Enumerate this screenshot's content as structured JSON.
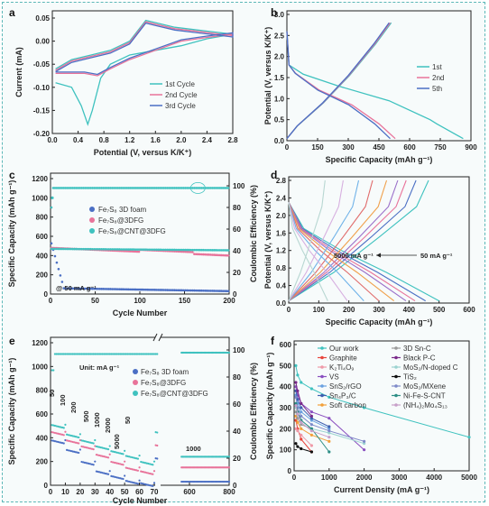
{
  "colors": {
    "teal": "#3fc2bf",
    "pink": "#e8739a",
    "blue": "#4b6fc4",
    "frame": "#5bb7b7"
  },
  "chart_data": [
    {
      "panel": "a",
      "type": "line",
      "xlabel": "Potential (V, versus K/K⁺)",
      "ylabel": "Current (mA)",
      "xlim": [
        0.0,
        2.8
      ],
      "ylim": [
        -0.2,
        0.05
      ],
      "xticks": [
        "0.0",
        "0.4",
        "0.8",
        "1.2",
        "1.6",
        "2.0",
        "2.4",
        "2.8"
      ],
      "yticks": [
        "0.05",
        "0.00",
        "-0.05",
        "-0.10",
        "-0.15",
        "-0.20"
      ],
      "legend": "bottom-right",
      "series": [
        {
          "name": "1st Cycle",
          "color": "#3fc2bf"
        },
        {
          "name": "2nd Cycle",
          "color": "#e8739a"
        },
        {
          "name": "3rd  Cycle",
          "color": "#4b6fc4"
        }
      ]
    },
    {
      "panel": "b",
      "type": "line",
      "xlabel": "Specific Capacity (mAh g⁻¹)",
      "ylabel": "Potential (V, versus K/K⁺)",
      "xlim": [
        0,
        900
      ],
      "ylim": [
        0.0,
        3.0
      ],
      "xticks": [
        "0",
        "150",
        "300",
        "450",
        "600",
        "750",
        "900"
      ],
      "yticks": [
        "0.0",
        "0.5",
        "1.0",
        "1.5",
        "2.0",
        "2.5",
        "3.0"
      ],
      "legend": "right",
      "series": [
        {
          "name": "1st",
          "color": "#3fc2bf",
          "discharge_end": 862,
          "charge_end": 510
        },
        {
          "name": "2nd",
          "color": "#e8739a",
          "discharge_end": 530,
          "charge_end": 505
        },
        {
          "name": "5th",
          "color": "#4b6fc4",
          "discharge_end": 505,
          "charge_end": 500
        }
      ]
    },
    {
      "panel": "c",
      "type": "scatter",
      "xlabel": "Cycle Number",
      "ylabel": "Specific Capacity (mAh g⁻¹)",
      "y2label": "Coulombic Efficiency (%)",
      "xlim": [
        0,
        200
      ],
      "ylim": [
        0,
        1200
      ],
      "y2lim": [
        0,
        100
      ],
      "xticks": [
        "0",
        "50",
        "100",
        "150",
        "200"
      ],
      "yticks": [
        "0",
        "200",
        "400",
        "600",
        "800",
        "1000",
        "1200"
      ],
      "y2ticks": [
        "0",
        "20",
        "40",
        "60",
        "80",
        "100"
      ],
      "annotation": "@ 50 mA g⁻¹",
      "series": [
        {
          "name": "Fe₇S₈ 3D foam",
          "color": "#4b6fc4",
          "values_start": 560,
          "values_end": 30
        },
        {
          "name": "Fe₇S₈@3DFG",
          "color": "#e8739a",
          "values_start": 480,
          "values_end": 400
        },
        {
          "name": "Fe₇S₈@CNT@3DFG",
          "color": "#3fc2bf",
          "values_start": 470,
          "values_end": 455
        },
        {
          "name": "Coulombic Efficiency",
          "color": "#3fc2bf",
          "values": 98
        }
      ]
    },
    {
      "panel": "d",
      "type": "line",
      "xlabel": "Specific Capacity (mAh g⁻¹)",
      "ylabel": "Potential (V, versus K/K⁺)",
      "xlim": [
        0,
        600
      ],
      "ylim": [
        0.0,
        2.8
      ],
      "xticks": [
        "0",
        "100",
        "200",
        "300",
        "400",
        "500",
        "600"
      ],
      "yticks": [
        "0.0",
        "0.4",
        "0.8",
        "1.2",
        "1.6",
        "2.0",
        "2.4",
        "2.8"
      ],
      "annotations": [
        "5000 mA g⁻¹",
        "50 mA g⁻¹"
      ],
      "series_end_capacities": [
        500,
        455,
        420,
        390,
        350,
        300,
        250,
        195,
        130
      ],
      "series_colors": [
        "#3fc2bf",
        "#4b6fc4",
        "#e8739a",
        "#9a6fc9",
        "#f0a04b",
        "#e06b6b",
        "#6fb2e8",
        "#d7b0e0",
        "#b8d7d2"
      ]
    },
    {
      "panel": "e",
      "type": "scatter",
      "xlabel": "Cycle Number",
      "ylabel": "Specific Capacity (mAh g⁻¹)",
      "y2label": "Coulombic Efficiency (%)",
      "ylim": [
        0,
        1200
      ],
      "y2lim": [
        0,
        100
      ],
      "xticks": [
        "0",
        "10",
        "20",
        "30",
        "40",
        "50",
        "60",
        "70",
        "600",
        "800"
      ],
      "yticks": [
        "0",
        "200",
        "400",
        "600",
        "800",
        "1000",
        "1200"
      ],
      "y2ticks": [
        "0",
        "20",
        "40",
        "60",
        "80",
        "100"
      ],
      "unit_label": "Unit: mA g⁻¹",
      "rate_labels": [
        "50",
        "100",
        "200",
        "500",
        "1000",
        "2000",
        "5000",
        "50",
        "1000"
      ],
      "series": [
        {
          "name": "Fe₇S₈ 3D foam",
          "color": "#4b6fc4"
        },
        {
          "name": "Fe₇S₈@3DFG",
          "color": "#e8739a"
        },
        {
          "name": "Fe₇S₈@CNT@3DFG",
          "color": "#3fc2bf"
        }
      ]
    },
    {
      "panel": "f",
      "type": "line",
      "xlabel": "Current Density (mA g⁻¹)",
      "ylabel": "Specific Capacity (mAh g⁻¹)",
      "xlim": [
        0,
        5000
      ],
      "ylim": [
        0,
        600
      ],
      "xticks": [
        "0",
        "1000",
        "2000",
        "3000",
        "4000",
        "5000"
      ],
      "yticks": [
        "0",
        "100",
        "200",
        "300",
        "400",
        "500",
        "600"
      ],
      "legend": [
        {
          "name": "Our work",
          "color": "#3fc2bf",
          "points": [
            [
              50,
              500
            ],
            [
              100,
              455
            ],
            [
              200,
              420
            ],
            [
              500,
              390
            ],
            [
              1000,
              350
            ],
            [
              2000,
              300
            ],
            [
              5000,
              160
            ]
          ]
        },
        {
          "name": "Graphite",
          "color": "#e8453c",
          "points": [
            [
              50,
              240
            ],
            [
              100,
              200
            ],
            [
              200,
              150
            ],
            [
              500,
              90
            ]
          ]
        },
        {
          "name": "K₂Ti₄O₉",
          "color": "#ef9aa8",
          "points": [
            [
              50,
              200
            ],
            [
              100,
              190
            ],
            [
              200,
              170
            ],
            [
              500,
              120
            ]
          ]
        },
        {
          "name": "VS",
          "color": "#8a4fc0",
          "points": [
            [
              50,
              400
            ],
            [
              100,
              360
            ],
            [
              200,
              320
            ],
            [
              500,
              280
            ],
            [
              1000,
              250
            ],
            [
              2000,
              100
            ]
          ]
        },
        {
          "name": "SnS₂/rGO",
          "color": "#6aa1e0",
          "points": [
            [
              50,
              360
            ],
            [
              100,
              320
            ],
            [
              200,
              280
            ],
            [
              500,
              240
            ],
            [
              1000,
              200
            ]
          ]
        },
        {
          "name": "Sn₄P₃/C",
          "color": "#3e5fb0",
          "points": [
            [
              50,
              380
            ],
            [
              100,
              340
            ],
            [
              200,
              300
            ],
            [
              500,
              250
            ],
            [
              1000,
              210
            ]
          ]
        },
        {
          "name": "Soft carbon",
          "color": "#f2a03a",
          "points": [
            [
              50,
              260
            ],
            [
              100,
              230
            ],
            [
              200,
              200
            ],
            [
              500,
              170
            ],
            [
              1000,
              140
            ]
          ]
        },
        {
          "name": "3D Sn-C",
          "color": "#9a9a9a",
          "points": [
            [
              50,
              280
            ],
            [
              100,
              250
            ],
            [
              200,
              220
            ],
            [
              500,
              200
            ]
          ]
        },
        {
          "name": "Black P-C",
          "color": "#7a2a8a",
          "points": [
            [
              50,
              420
            ],
            [
              100,
              380
            ],
            [
              200,
              320
            ],
            [
              500,
              260
            ]
          ]
        },
        {
          "name": "MoS₂/N-doped C",
          "color": "#9bd3d0",
          "points": [
            [
              50,
              300
            ],
            [
              100,
              270
            ],
            [
              200,
              240
            ],
            [
              500,
              200
            ],
            [
              1000,
              180
            ],
            [
              2000,
              130
            ]
          ]
        },
        {
          "name": "TiS₂",
          "color": "#111111",
          "points": [
            [
              50,
              130
            ],
            [
              100,
              115
            ],
            [
              200,
              105
            ],
            [
              500,
              90
            ]
          ]
        },
        {
          "name": "MoS₂/MXene",
          "color": "#7e8ac9",
          "points": [
            [
              50,
              350
            ],
            [
              100,
              300
            ],
            [
              200,
              260
            ],
            [
              500,
              220
            ],
            [
              1000,
              190
            ],
            [
              2000,
              140
            ]
          ]
        },
        {
          "name": "Ni-Fe-S-CNT",
          "color": "#2e8e86",
          "points": [
            [
              50,
              320
            ],
            [
              100,
              280
            ],
            [
              200,
              240
            ],
            [
              500,
              200
            ],
            [
              1000,
              90
            ]
          ]
        },
        {
          "name": "(NH₄)₂Mo₄S₁₃",
          "color": "#c7a0c9",
          "points": [
            [
              50,
              310
            ],
            [
              100,
              270
            ],
            [
              200,
              230
            ],
            [
              500,
              190
            ],
            [
              1000,
              160
            ]
          ]
        }
      ]
    }
  ]
}
